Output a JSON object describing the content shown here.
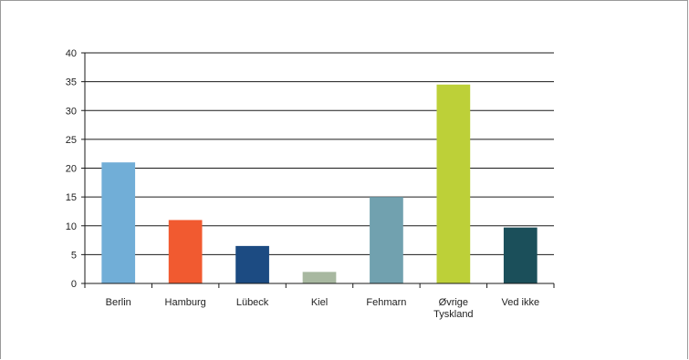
{
  "chart_data": {
    "type": "bar",
    "categories": [
      [
        "Berlin"
      ],
      [
        "Hamburg"
      ],
      [
        "Lübeck"
      ],
      [
        "Kiel"
      ],
      [
        "Fehmarn"
      ],
      [
        "Øvrige",
        "Tyskland"
      ],
      [
        "Ved ikke"
      ]
    ],
    "values": [
      21,
      11,
      6.5,
      2,
      15,
      34.5,
      9.7
    ],
    "colors": [
      "#71AED7",
      "#F15A30",
      "#1C4B82",
      "#A8B8A0",
      "#71A1AF",
      "#BDD038",
      "#1B4F5A"
    ],
    "ylim": [
      0,
      40
    ],
    "yticks": [
      "0",
      "5",
      "10",
      "15",
      "20",
      "25",
      "30",
      "35",
      "40"
    ],
    "grid": true,
    "title": "",
    "xlabel": "",
    "ylabel": ""
  }
}
